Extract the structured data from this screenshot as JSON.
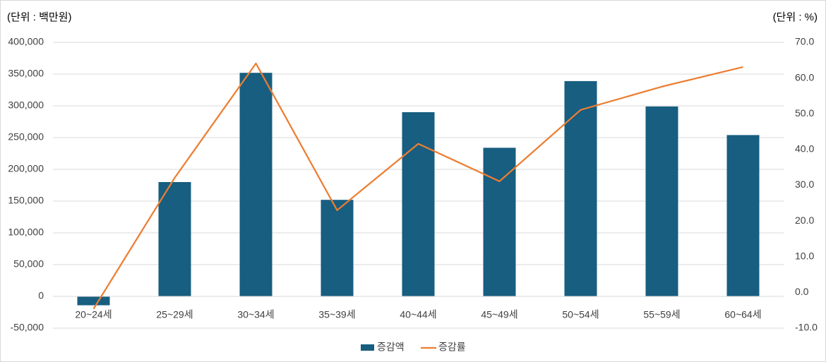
{
  "chart_data": {
    "type": "bar-line",
    "y_unit_label": "(단위 : 백만원)",
    "y2_unit_label": "(단위 : %)",
    "categories": [
      "20~24세",
      "25~29세",
      "30~34세",
      "35~39세",
      "40~44세",
      "45~49세",
      "50~54세",
      "55~59세",
      "60~64세"
    ],
    "series": [
      {
        "name": "증감액",
        "type": "bar",
        "color": "#175e80",
        "values": [
          -14000,
          180000,
          352000,
          152000,
          290000,
          234000,
          339000,
          299000,
          254000
        ]
      },
      {
        "name": "증감률",
        "type": "line",
        "axis": "y2",
        "color": "#ed7d31",
        "values": [
          -4.6,
          32.1,
          64.1,
          23.0,
          41.6,
          31.1,
          51.1,
          57.6,
          63.1
        ]
      }
    ],
    "ylim": [
      -50000,
      400000
    ],
    "yticks": [
      {
        "value": -50000,
        "label": "-50,000"
      },
      0,
      {
        "value": 50000,
        "label": "50,000"
      },
      {
        "value": 100000,
        "label": "100,000"
      },
      {
        "value": 150000,
        "label": "150,000"
      },
      {
        "value": 200000,
        "label": "200,000"
      },
      {
        "value": 250000,
        "label": "250,000"
      },
      {
        "value": 300000,
        "label": "300,000"
      },
      {
        "value": 350000,
        "label": "350,000"
      },
      {
        "value": 400000,
        "label": "400,000"
      }
    ],
    "y2lim": [
      -10,
      70
    ],
    "y2ticks": [
      {
        "value": -10,
        "label": "-10.0"
      },
      {
        "value": 0,
        "label": "0.0"
      },
      {
        "value": 10,
        "label": "10.0"
      },
      {
        "value": 20,
        "label": "20.0"
      },
      {
        "value": 30,
        "label": "30.0"
      },
      {
        "value": 40,
        "label": "40.0"
      },
      {
        "value": 50,
        "label": "50.0"
      },
      {
        "value": 60,
        "label": "60.0"
      },
      {
        "value": 70,
        "label": "70.0"
      }
    ],
    "grid": true,
    "legend": "bottom"
  }
}
